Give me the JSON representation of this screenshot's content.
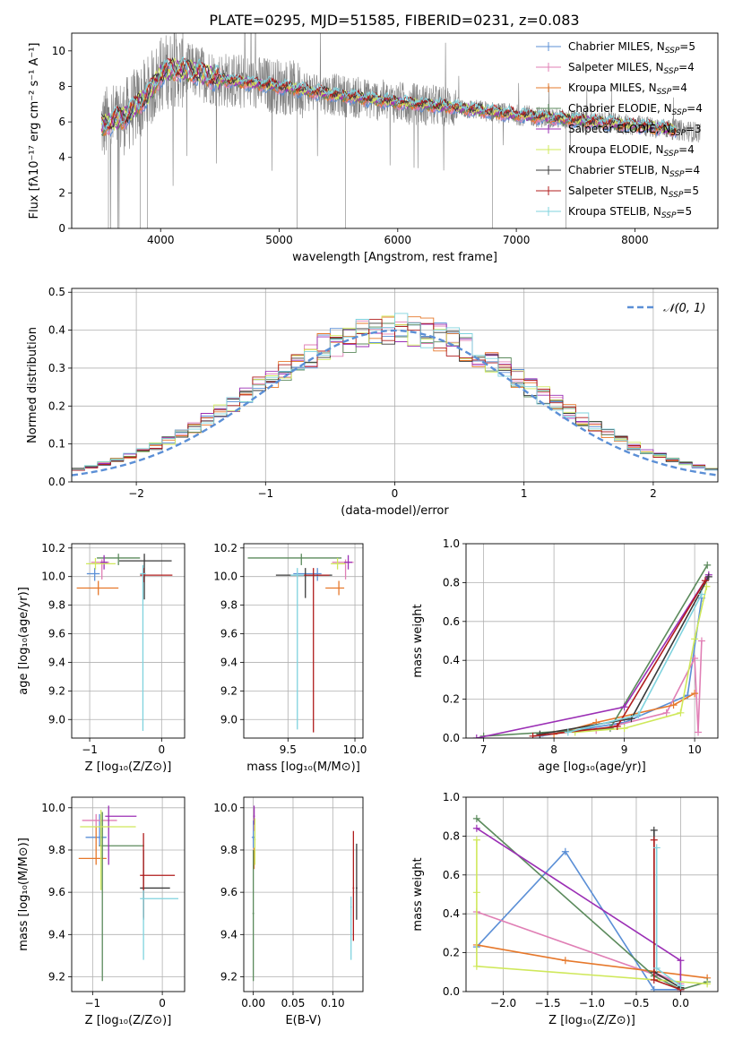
{
  "figure": {
    "title": "PLATE=0295, MJD=51585, FIBERID=0231, z=0.083"
  },
  "colors": {
    "Chabrier MILES": "#5b8fd6",
    "Salpeter MILES": "#e07fb5",
    "Kroupa MILES": "#e6782b",
    "Chabrier ELODIE": "#5b8a5c",
    "Salpeter ELODIE": "#9b2fb5",
    "Kroupa ELODIE": "#cfe85a",
    "Chabrier STELIB": "#3a3a3a",
    "Salpeter STELIB": "#b01c1c",
    "Kroupa STELIB": "#7fd3de",
    "data": "#808080",
    "gaussian": "#5b8fd6"
  },
  "chart_data": [
    {
      "id": "spectrum",
      "type": "line",
      "xlabel": "wavelength [Angstrom, rest frame]",
      "ylabel": "Flux [fλ10⁻¹⁷ erg cm⁻² s⁻¹ A⁻¹]",
      "xlim": [
        3250,
        8700
      ],
      "ylim": [
        0,
        11
      ],
      "xticks": [
        4000,
        5000,
        6000,
        7000,
        8000
      ],
      "yticks": [
        0,
        2,
        4,
        6,
        8,
        10
      ],
      "legend_position": "top-right",
      "legend": [
        {
          "label": "Chabrier MILES, N",
          "sub": "SSP",
          "tail": "=5",
          "key": "Chabrier MILES"
        },
        {
          "label": "Salpeter MILES, N",
          "sub": "SSP",
          "tail": "=4",
          "key": "Salpeter MILES"
        },
        {
          "label": "Kroupa MILES, N",
          "sub": "SSP",
          "tail": "=4",
          "key": "Kroupa MILES"
        },
        {
          "label": "Chabrier ELODIE, N",
          "sub": "SSP",
          "tail": "=4",
          "key": "Chabrier ELODIE"
        },
        {
          "label": "Salpeter ELODIE, N",
          "sub": "SSP",
          "tail": "=3",
          "key": "Salpeter ELODIE"
        },
        {
          "label": "Kroupa ELODIE, N",
          "sub": "SSP",
          "tail": "=4",
          "key": "Kroupa ELODIE"
        },
        {
          "label": "Chabrier STELIB, N",
          "sub": "SSP",
          "tail": "=4",
          "key": "Chabrier STELIB"
        },
        {
          "label": "Salpeter STELIB, N",
          "sub": "SSP",
          "tail": "=5",
          "key": "Salpeter STELIB"
        },
        {
          "label": "Kroupa STELIB, N",
          "sub": "SSP",
          "tail": "=5",
          "key": "Kroupa STELIB"
        }
      ],
      "data_range": [
        3500,
        8550
      ],
      "model_range": [
        3500,
        8350
      ],
      "continuum": {
        "x": [
          3500,
          3700,
          3900,
          4000,
          4100,
          4300,
          4500,
          5000,
          5500,
          6000,
          6500,
          7000,
          7500,
          8000,
          8300,
          8550
        ],
        "y": [
          5.8,
          6.3,
          7.6,
          8.7,
          9.0,
          8.8,
          8.4,
          8.0,
          7.5,
          7.1,
          6.8,
          6.4,
          6.1,
          5.8,
          5.6,
          5.4
        ]
      },
      "absorption_spikes": [
        {
          "x": 3560,
          "y": 0
        },
        {
          "x": 3830,
          "y": 0
        },
        {
          "x": 3890,
          "y": 0
        },
        {
          "x": 5150,
          "y": 0
        },
        {
          "x": 5560,
          "y": 0
        },
        {
          "x": 6800,
          "y": 0
        },
        {
          "x": 7420,
          "y": 0
        }
      ]
    },
    {
      "id": "residuals",
      "type": "bar",
      "xlabel": "(data-model)/error",
      "ylabel": "Normed distribution",
      "xlim": [
        -2.5,
        2.5
      ],
      "ylim": [
        0,
        0.51
      ],
      "xticks": [
        -2,
        -1,
        0,
        1,
        2
      ],
      "yticks": [
        0.0,
        0.1,
        0.2,
        0.3,
        0.4,
        0.5
      ],
      "grid": true,
      "legend_position": "top-right",
      "gaussian_label": "𝒩(0, 1)",
      "bin_width": 0.1,
      "bins_start": -2.5,
      "n_bins": 50
    },
    {
      "id": "age-vs-Z",
      "type": "scatter",
      "xlabel": "Z [log₁₀(Z/Z⊙)]",
      "ylabel": "age  [log₁₀(age/yr)]",
      "xlim": [
        -1.25,
        0.32
      ],
      "ylim": [
        8.87,
        10.23
      ],
      "xticks": [
        -1,
        0
      ],
      "yticks": [
        9.0,
        9.2,
        9.4,
        9.6,
        9.8,
        10.0,
        10.2
      ],
      "grid": true,
      "points": [
        {
          "model": "Chabrier MILES",
          "x": -0.93,
          "xerr": [
            0.11,
            0.07
          ],
          "y": 10.02,
          "yerr": [
            0.05,
            0.04
          ]
        },
        {
          "model": "Salpeter MILES",
          "x": -0.83,
          "xerr": [
            0.15,
            0.1
          ],
          "y": 10.1,
          "yerr": [
            0.12,
            0.02
          ]
        },
        {
          "model": "Kroupa MILES",
          "x": -0.88,
          "xerr": [
            0.3,
            0.28
          ],
          "y": 9.92,
          "yerr": [
            0.05,
            0.05
          ]
        },
        {
          "model": "Chabrier ELODIE",
          "x": -0.6,
          "xerr": [
            0.3,
            0.3
          ],
          "y": 10.13,
          "yerr": [
            0.05,
            0.03
          ]
        },
        {
          "model": "Salpeter ELODIE",
          "x": -0.8,
          "xerr": [
            0.05,
            0.05
          ],
          "y": 10.1,
          "yerr": [
            0.05,
            0.05
          ]
        },
        {
          "model": "Kroupa ELODIE",
          "x": -0.92,
          "xerr": [
            0.13,
            0.28
          ],
          "y": 10.09,
          "yerr": [
            0.04,
            0.04
          ]
        },
        {
          "model": "Chabrier STELIB",
          "x": -0.24,
          "xerr": [
            0.35,
            0.38
          ],
          "y": 10.11,
          "yerr": [
            0.27,
            0.05
          ]
        },
        {
          "model": "Salpeter STELIB",
          "x": -0.25,
          "xerr": [
            0.05,
            0.4
          ],
          "y": 10.01,
          "yerr": [
            0.05,
            0.05
          ]
        },
        {
          "model": "Kroupa STELIB",
          "x": -0.26,
          "xerr": [
            0.04,
            0.04
          ],
          "y": 10.02,
          "yerr": [
            1.1,
            0.06
          ]
        }
      ]
    },
    {
      "id": "age-vs-mass",
      "type": "scatter",
      "xlabel": "mass [log₁₀(M/M⊙)]",
      "ylabel": "",
      "xlim": [
        9.17,
        10.06
      ],
      "ylim": [
        8.87,
        10.23
      ],
      "xticks": [
        9.5,
        10.0
      ],
      "yticks": [
        9.0,
        9.2,
        9.4,
        9.6,
        9.8,
        10.0,
        10.2
      ],
      "grid": true,
      "points": [
        {
          "model": "Chabrier MILES",
          "x": 9.72,
          "xerr": [
            0.18,
            0.03
          ],
          "y": 10.02,
          "yerr": [
            0.05,
            0.04
          ]
        },
        {
          "model": "Salpeter MILES",
          "x": 9.93,
          "xerr": [
            0.1,
            0.06
          ],
          "y": 10.1,
          "yerr": [
            0.12,
            0.02
          ]
        },
        {
          "model": "Kroupa MILES",
          "x": 9.88,
          "xerr": [
            0.1,
            0.04
          ],
          "y": 9.92,
          "yerr": [
            0.05,
            0.05
          ]
        },
        {
          "model": "Chabrier ELODIE",
          "x": 9.6,
          "xerr": [
            0.4,
            0.3
          ],
          "y": 10.13,
          "yerr": [
            0.05,
            0.03
          ]
        },
        {
          "model": "Salpeter ELODIE",
          "x": 9.95,
          "xerr": [
            0.03,
            0.03
          ],
          "y": 10.1,
          "yerr": [
            0.05,
            0.05
          ]
        },
        {
          "model": "Kroupa ELODIE",
          "x": 9.87,
          "xerr": [
            0.05,
            0.06
          ],
          "y": 10.09,
          "yerr": [
            0.04,
            0.04
          ]
        },
        {
          "model": "Chabrier STELIB",
          "x": 9.63,
          "xerr": [
            0.22,
            0.2
          ],
          "y": 10.01,
          "yerr": [
            0.16,
            0.05
          ]
        },
        {
          "model": "Salpeter STELIB",
          "x": 9.69,
          "xerr": [
            0.12,
            0.12
          ],
          "y": 10.01,
          "yerr": [
            1.1,
            0.05
          ]
        },
        {
          "model": "Kroupa STELIB",
          "x": 9.57,
          "xerr": [
            0.05,
            0.05
          ],
          "y": 10.01,
          "yerr": [
            1.08,
            0.05
          ]
        }
      ]
    },
    {
      "id": "massweight-vs-age",
      "type": "line",
      "xlabel": "age  [log₁₀(age/yr)]",
      "ylabel": "mass weight",
      "xlim": [
        6.75,
        10.33
      ],
      "ylim": [
        0,
        1.0
      ],
      "xticks": [
        7,
        8,
        9,
        10
      ],
      "yticks": [
        0.0,
        0.2,
        0.4,
        0.6,
        0.8,
        1.0
      ],
      "grid": true,
      "series": [
        {
          "model": "Chabrier MILES",
          "x": [
            7.8,
            9.0,
            9.9,
            10.1
          ],
          "y": [
            0.01,
            0.08,
            0.22,
            0.72
          ]
        },
        {
          "model": "Salpeter MILES",
          "x": [
            8.6,
            9.6,
            10.0,
            10.05,
            10.1
          ],
          "y": [
            0.04,
            0.13,
            0.41,
            0.03,
            0.5
          ]
        },
        {
          "model": "Kroupa MILES",
          "x": [
            8.0,
            8.6,
            9.7,
            10.0
          ],
          "y": [
            0.02,
            0.08,
            0.17,
            0.23
          ]
        },
        {
          "model": "Chabrier ELODIE",
          "x": [
            7.0,
            8.8,
            10.18
          ],
          "y": [
            0.01,
            0.05,
            0.89
          ]
        },
        {
          "model": "Salpeter ELODIE",
          "x": [
            6.9,
            9.0,
            10.2
          ],
          "y": [
            0.0,
            0.16,
            0.84
          ]
        },
        {
          "model": "Kroupa ELODIE",
          "x": [
            8.3,
            9.0,
            9.8,
            10.0,
            10.17
          ],
          "y": [
            0.03,
            0.05,
            0.13,
            0.51,
            0.78
          ]
        },
        {
          "model": "Chabrier STELIB",
          "x": [
            7.8,
            9.1,
            10.2
          ],
          "y": [
            0.02,
            0.1,
            0.83
          ]
        },
        {
          "model": "Salpeter STELIB",
          "x": [
            7.7,
            8.9,
            10.15
          ],
          "y": [
            0.01,
            0.06,
            0.81
          ]
        },
        {
          "model": "Kroupa STELIB",
          "x": [
            8.2,
            9.2,
            10.1
          ],
          "y": [
            0.03,
            0.12,
            0.74
          ]
        }
      ]
    },
    {
      "id": "mass-vs-Z",
      "type": "scatter",
      "xlabel": "Z [log₁₀(Z/Z⊙)]",
      "ylabel": "mass [log₁₀(M/M⊙)]",
      "xlim": [
        -1.3,
        0.32
      ],
      "ylim": [
        9.13,
        10.05
      ],
      "xticks": [
        -1,
        0
      ],
      "yticks": [
        9.2,
        9.4,
        9.6,
        9.8,
        10.0
      ],
      "grid": true,
      "points": [
        {
          "model": "Chabrier MILES",
          "x": -0.9,
          "xerr": [
            0.2,
            0.1
          ],
          "y": 9.86,
          "yerr": [
            0.04,
            0.11
          ]
        },
        {
          "model": "Salpeter MILES",
          "x": -0.95,
          "xerr": [
            0.2,
            0.3
          ],
          "y": 9.94,
          "yerr": [
            0.03,
            0.03
          ]
        },
        {
          "model": "Kroupa MILES",
          "x": -0.95,
          "xerr": [
            0.25,
            0.15
          ],
          "y": 9.76,
          "yerr": [
            0.03,
            0.15
          ]
        },
        {
          "model": "Chabrier ELODIE",
          "x": -0.86,
          "xerr": [
            0.05,
            0.6
          ],
          "y": 9.82,
          "yerr": [
            0.64,
            0.16
          ]
        },
        {
          "model": "Salpeter ELODIE",
          "x": -0.77,
          "xerr": [
            0.05,
            0.4
          ],
          "y": 9.96,
          "yerr": [
            0.23,
            0.05
          ]
        },
        {
          "model": "Kroupa ELODIE",
          "x": -0.88,
          "xerr": [
            0.3,
            0.5
          ],
          "y": 9.91,
          "yerr": [
            0.3,
            0.08
          ]
        },
        {
          "model": "Chabrier STELIB",
          "x": -0.27,
          "xerr": [
            0.05,
            0.38
          ],
          "y": 9.62,
          "yerr": [
            0.15,
            0.18
          ]
        },
        {
          "model": "Salpeter STELIB",
          "x": -0.27,
          "xerr": [
            0.05,
            0.45
          ],
          "y": 9.68,
          "yerr": [
            0.2,
            0.2
          ]
        },
        {
          "model": "Kroupa STELIB",
          "x": -0.27,
          "xerr": [
            0.05,
            0.5
          ],
          "y": 9.57,
          "yerr": [
            0.29,
            0.04
          ]
        }
      ]
    },
    {
      "id": "mass-vs-EBV",
      "type": "scatter",
      "xlabel": "E(B-V)",
      "ylabel": "",
      "xlim": [
        -0.012,
        0.138
      ],
      "ylim": [
        9.13,
        10.05
      ],
      "xticks": [
        0.0,
        0.05,
        0.1
      ],
      "xticklabels": [
        "0.00",
        "0.05",
        "0.10"
      ],
      "yticks": [
        9.2,
        9.4,
        9.6,
        9.8,
        10.0
      ],
      "grid": true,
      "points": [
        {
          "model": "Chabrier MILES",
          "x": 0.0,
          "xerr": [
            0.002,
            0.002
          ],
          "y": 9.86,
          "yerr": [
            0.05,
            0.08
          ]
        },
        {
          "model": "Salpeter MILES",
          "x": 0.001,
          "xerr": [
            0.001,
            0.001
          ],
          "y": 9.94,
          "yerr": [
            0.05,
            0.06
          ]
        },
        {
          "model": "Kroupa MILES",
          "x": 0.001,
          "xerr": [
            0.001,
            0.001
          ],
          "y": 9.76,
          "yerr": [
            0.05,
            0.05
          ]
        },
        {
          "model": "Chabrier ELODIE",
          "x": 0.0,
          "xerr": [
            0.001,
            0.001
          ],
          "y": 9.5,
          "yerr": [
            0.32,
            0.3
          ]
        },
        {
          "model": "Salpeter ELODIE",
          "x": 0.001,
          "xerr": [
            0.001,
            0.001
          ],
          "y": 9.96,
          "yerr": [
            0.04,
            0.05
          ]
        },
        {
          "model": "Kroupa ELODIE",
          "x": 0.002,
          "xerr": [
            0.001,
            0.001
          ],
          "y": 9.85,
          "yerr": [
            0.12,
            0.1
          ]
        },
        {
          "model": "Chabrier STELIB",
          "x": 0.13,
          "xerr": [
            0.001,
            0.001
          ],
          "y": 9.62,
          "yerr": [
            0.15,
            0.21
          ]
        },
        {
          "model": "Salpeter STELIB",
          "x": 0.126,
          "xerr": [
            0.001,
            0.001
          ],
          "y": 9.62,
          "yerr": [
            0.25,
            0.27
          ]
        },
        {
          "model": "Kroupa STELIB",
          "x": 0.123,
          "xerr": [
            0.001,
            0.001
          ],
          "y": 9.53,
          "yerr": [
            0.25,
            0.05
          ]
        }
      ]
    },
    {
      "id": "massweight-vs-Z",
      "type": "line",
      "xlabel": "Z [log₁₀(Z/Z⊙)]",
      "ylabel": "mass weight",
      "xlim": [
        -2.42,
        0.42
      ],
      "ylim": [
        0,
        1.0
      ],
      "xticks": [
        -2.0,
        -1.5,
        -1.0,
        -0.5,
        0.0
      ],
      "xticklabels": [
        "−2.0",
        "−1.5",
        "−1.0",
        "−0.5",
        "0.0"
      ],
      "yticks": [
        0.0,
        0.2,
        0.4,
        0.6,
        0.8,
        1.0
      ],
      "grid": true,
      "series": [
        {
          "model": "Chabrier MILES",
          "x": [
            -2.3,
            -1.3,
            -0.3,
            0.0
          ],
          "y": [
            0.23,
            0.72,
            0.01,
            0.01
          ]
        },
        {
          "model": "Salpeter MILES",
          "x": [
            -2.3,
            0.0,
            -0.3
          ],
          "y": [
            0.41,
            0.04,
            0.1
          ]
        },
        {
          "model": "Kroupa MILES",
          "x": [
            -2.3,
            -1.3,
            0.3
          ],
          "y": [
            0.24,
            0.16,
            0.07
          ]
        },
        {
          "model": "Chabrier ELODIE",
          "x": [
            -2.3,
            -0.3,
            0.0,
            0.3
          ],
          "y": [
            0.89,
            0.08,
            0.01,
            0.05
          ]
        },
        {
          "model": "Salpeter ELODIE",
          "x": [
            -2.3,
            0.0,
            0.0
          ],
          "y": [
            0.84,
            0.16,
            0.0
          ]
        },
        {
          "model": "Kroupa ELODIE",
          "x": [
            -2.3,
            -2.3,
            -2.3,
            0.3
          ],
          "y": [
            0.78,
            0.51,
            0.13,
            0.04
          ]
        },
        {
          "model": "Chabrier STELIB",
          "x": [
            -0.3,
            -0.3,
            0.0
          ],
          "y": [
            0.83,
            0.1,
            0.02
          ]
        },
        {
          "model": "Salpeter STELIB",
          "x": [
            -0.3,
            -0.3,
            0.0
          ],
          "y": [
            0.78,
            0.06,
            0.01
          ]
        },
        {
          "model": "Kroupa STELIB",
          "x": [
            -0.27,
            -0.27,
            0.0
          ],
          "y": [
            0.74,
            0.12,
            0.03
          ]
        }
      ]
    }
  ]
}
